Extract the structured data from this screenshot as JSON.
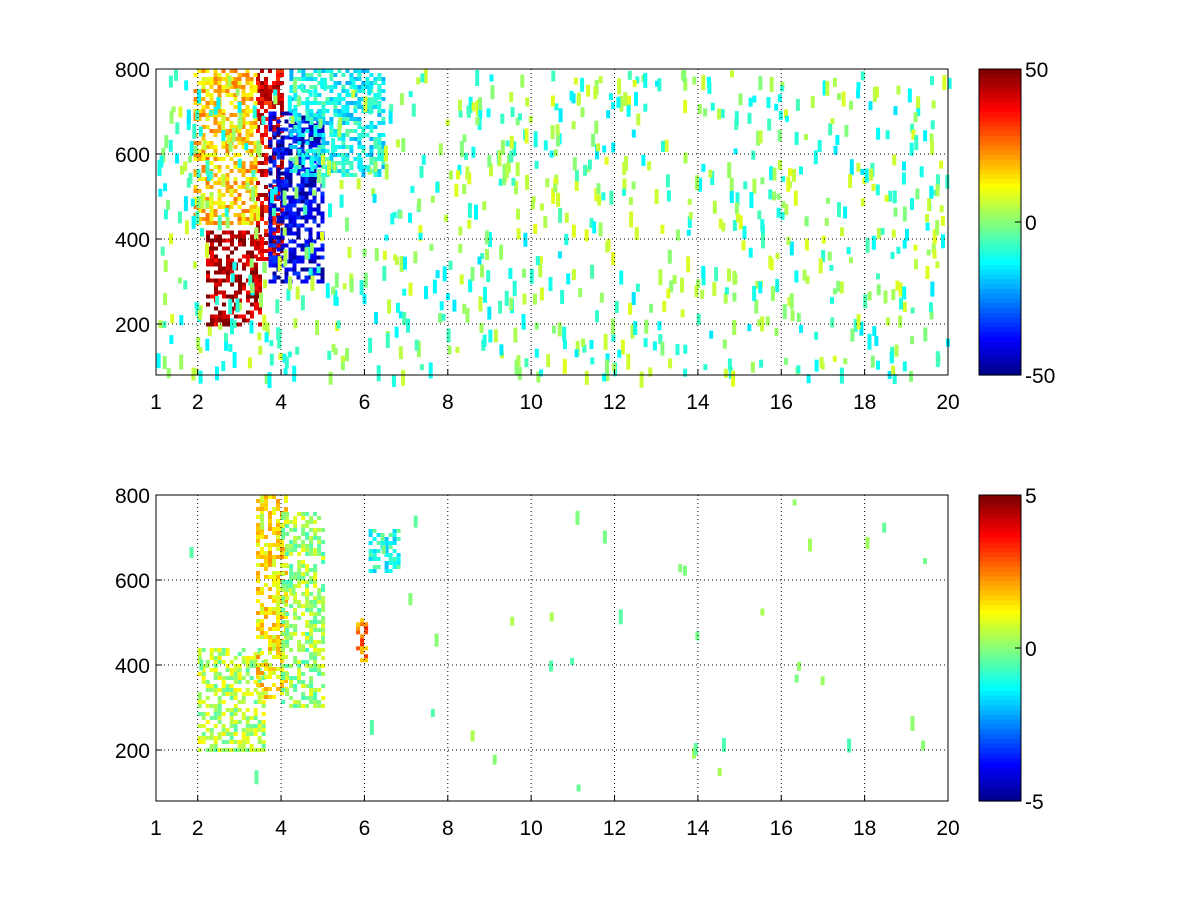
{
  "chart_data": [
    {
      "type": "heatmap",
      "title": "",
      "xlabel": "",
      "ylabel": "",
      "xlim": [
        1,
        20
      ],
      "ylim": [
        80,
        800
      ],
      "grid": true,
      "colormap": "jet",
      "x_ticks": [
        1,
        2,
        4,
        6,
        8,
        10,
        12,
        14,
        16,
        18,
        20
      ],
      "x_tick_labels": [
        "1",
        "2",
        "4",
        "6",
        "8",
        "10",
        "12",
        "14",
        "16",
        "18",
        "20"
      ],
      "y_ticks": [
        200,
        400,
        600,
        800
      ],
      "y_tick_labels": [
        "200",
        "400",
        "600",
        "800"
      ],
      "colorbar": {
        "clim": [
          -50,
          50
        ],
        "ticks": [
          50,
          0,
          -50
        ],
        "tick_labels": [
          "50",
          "0",
          "-50"
        ]
      },
      "features": [
        {
          "x": [
            2.2,
            3.5
          ],
          "y": [
            200,
            420
          ],
          "value": 45
        },
        {
          "x": [
            3.4,
            4.0
          ],
          "y": [
            350,
            800
          ],
          "value": 40
        },
        {
          "x": [
            1.9,
            3.4
          ],
          "y": [
            440,
            800
          ],
          "value": 18
        },
        {
          "x": [
            3.7,
            5.0
          ],
          "y": [
            300,
            700
          ],
          "value": -40
        },
        {
          "x": [
            4.2,
            6.5
          ],
          "y": [
            550,
            800
          ],
          "value": -12
        }
      ]
    },
    {
      "type": "heatmap",
      "title": "",
      "xlabel": "",
      "ylabel": "",
      "xlim": [
        1,
        20
      ],
      "ylim": [
        80,
        800
      ],
      "grid": true,
      "colormap": "jet",
      "x_ticks": [
        1,
        2,
        4,
        6,
        8,
        10,
        12,
        14,
        16,
        18,
        20
      ],
      "x_tick_labels": [
        "1",
        "2",
        "4",
        "6",
        "8",
        "10",
        "12",
        "14",
        "16",
        "18",
        "20"
      ],
      "y_ticks": [
        200,
        400,
        600,
        800
      ],
      "y_tick_labels": [
        "200",
        "400",
        "600",
        "800"
      ],
      "colorbar": {
        "clim": [
          -5,
          5
        ],
        "ticks": [
          5,
          0,
          -5
        ],
        "tick_labels": [
          "5",
          "0",
          "-5"
        ]
      },
      "features": [
        {
          "x": [
            2.0,
            3.6
          ],
          "y": [
            200,
            440
          ],
          "value": 0.5
        },
        {
          "x": [
            3.4,
            4.1
          ],
          "y": [
            320,
            800
          ],
          "value": 1.5
        },
        {
          "x": [
            4.0,
            5.0
          ],
          "y": [
            300,
            760
          ],
          "value": 0.3
        },
        {
          "x": [
            5.8,
            6.0
          ],
          "y": [
            400,
            510
          ],
          "value": 2.5
        },
        {
          "x": [
            6.1,
            6.8
          ],
          "y": [
            620,
            720
          ],
          "value": -1.0
        }
      ]
    }
  ]
}
